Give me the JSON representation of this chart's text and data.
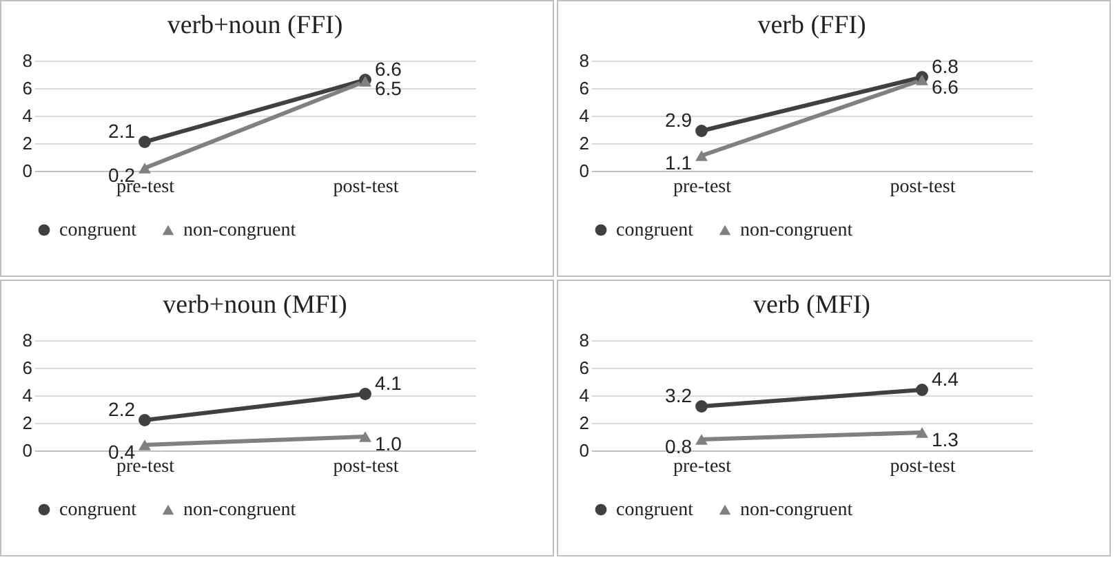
{
  "chart_data": [
    {
      "type": "line",
      "title": "verb+noun (FFI)",
      "categories": [
        "pre-test",
        "post-test"
      ],
      "series": [
        {
          "name": "congruent",
          "color": "#404040",
          "marker": "circle",
          "values": [
            2.1,
            6.6
          ],
          "value_labels": [
            "2.1",
            "6.6"
          ]
        },
        {
          "name": "non-congruent",
          "color": "#808080",
          "marker": "triangle",
          "values": [
            0.2,
            6.5
          ],
          "value_labels": [
            "0.2",
            "6.5"
          ]
        }
      ],
      "ylim": [
        0,
        8
      ],
      "yticks": [
        0,
        2,
        4,
        6,
        8
      ],
      "grid": "y",
      "legend": "bottom"
    },
    {
      "type": "line",
      "title": "verb (FFI)",
      "categories": [
        "pre-test",
        "post-test"
      ],
      "series": [
        {
          "name": "congruent",
          "color": "#404040",
          "marker": "circle",
          "values": [
            2.9,
            6.8
          ],
          "value_labels": [
            "2.9",
            "6.8"
          ]
        },
        {
          "name": "non-congruent",
          "color": "#808080",
          "marker": "triangle",
          "values": [
            1.1,
            6.6
          ],
          "value_labels": [
            "1.1",
            "6.6"
          ]
        }
      ],
      "ylim": [
        0,
        8
      ],
      "yticks": [
        0,
        2,
        4,
        6,
        8
      ],
      "grid": "y",
      "legend": "bottom"
    },
    {
      "type": "line",
      "title": "verb+noun (MFI)",
      "categories": [
        "pre-test",
        "post-test"
      ],
      "series": [
        {
          "name": "congruent",
          "color": "#404040",
          "marker": "circle",
          "values": [
            2.2,
            4.1
          ],
          "value_labels": [
            "2.2",
            "4.1"
          ]
        },
        {
          "name": "non-congruent",
          "color": "#808080",
          "marker": "triangle",
          "values": [
            0.4,
            1.0
          ],
          "value_labels": [
            "0.4",
            "1.0"
          ]
        }
      ],
      "ylim": [
        0,
        8
      ],
      "yticks": [
        0,
        2,
        4,
        6,
        8
      ],
      "grid": "y",
      "legend": "bottom"
    },
    {
      "type": "line",
      "title": "verb (MFI)",
      "categories": [
        "pre-test",
        "post-test"
      ],
      "series": [
        {
          "name": "congruent",
          "color": "#404040",
          "marker": "circle",
          "values": [
            3.2,
            4.4
          ],
          "value_labels": [
            "3.2",
            "4.4"
          ]
        },
        {
          "name": "non-congruent",
          "color": "#808080",
          "marker": "triangle",
          "values": [
            0.8,
            1.3
          ],
          "value_labels": [
            "0.8",
            "1.3"
          ]
        }
      ],
      "ylim": [
        0,
        8
      ],
      "yticks": [
        0,
        2,
        4,
        6,
        8
      ],
      "grid": "y",
      "legend": "bottom"
    }
  ]
}
